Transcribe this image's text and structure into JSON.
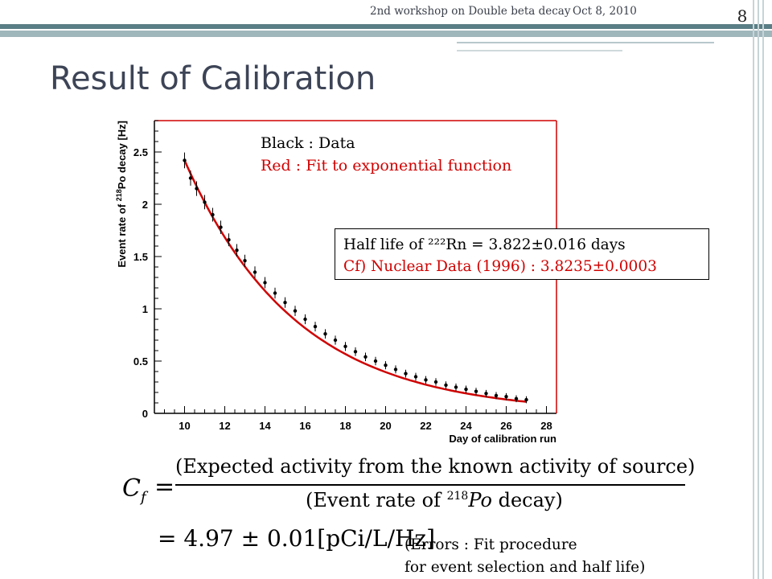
{
  "header": {
    "event": "2nd workshop on Double beta decay",
    "date": "Oct 8, 2010",
    "page": "8"
  },
  "slide": {
    "title": "Result of Calibration"
  },
  "legend": {
    "black": "Black : Data",
    "red": "Red : Fit to exponential function"
  },
  "infobox": {
    "line1": "Half life of ²²²Rn = 3.822±0.016 days",
    "line2": "Cf) Nuclear Data (1996) : 3.8235±0.0003"
  },
  "formula": {
    "lhs": "C",
    "lhs_sub": "f",
    "equals": "=",
    "numerator": "(Expected activity from the known activity of source)",
    "denominator_prefix": "(Event rate of ",
    "denominator_iso": "218",
    "denominator_el": "Po",
    "denominator_suffix": " decay)",
    "result": "= 4.97 ± 0.01[pCi/L/Hz]"
  },
  "errors_note": {
    "line1": "(Errors : Fit procedure",
    "line2": "for event selection and half life)"
  },
  "chart_data": {
    "type": "scatter",
    "xlabel": "Day of calibration run",
    "ylabel_pre": "Event rate of ",
    "ylabel_sup": "218",
    "ylabel_post": "Po decay [Hz]",
    "xlim": [
      8.5,
      28.5
    ],
    "ylim": [
      0,
      2.8
    ],
    "xticks": [
      10,
      12,
      14,
      16,
      18,
      20,
      22,
      24,
      26,
      28
    ],
    "yticks": [
      0,
      0.5,
      1,
      1.5,
      2,
      2.5
    ],
    "ytick_labels": [
      "0",
      "0.5",
      "1",
      "1.5",
      "2",
      "2.5"
    ],
    "series": [
      {
        "kind": "data",
        "color": "#000000",
        "x": [
          10.0,
          10.3,
          10.6,
          11.0,
          11.4,
          11.8,
          12.2,
          12.6,
          13.0,
          13.5,
          14.0,
          14.5,
          15.0,
          15.5,
          16.0,
          16.5,
          17.0,
          17.5,
          18.0,
          18.5,
          19.0,
          19.5,
          20.0,
          20.5,
          21.0,
          21.5,
          22.0,
          22.5,
          23.0,
          23.5,
          24.0,
          24.5,
          25.0,
          25.5,
          26.0,
          26.5,
          27.0
        ],
        "y": [
          2.42,
          2.25,
          2.15,
          2.02,
          1.9,
          1.78,
          1.66,
          1.56,
          1.46,
          1.35,
          1.25,
          1.15,
          1.06,
          0.98,
          0.9,
          0.83,
          0.76,
          0.7,
          0.64,
          0.59,
          0.54,
          0.5,
          0.46,
          0.42,
          0.38,
          0.35,
          0.32,
          0.3,
          0.27,
          0.25,
          0.23,
          0.21,
          0.19,
          0.17,
          0.16,
          0.14,
          0.13
        ]
      },
      {
        "kind": "fit",
        "color": "#d00000",
        "x0": 10.0,
        "x1": 27.0,
        "y0": 2.42,
        "half_life_days": 3.822
      }
    ]
  }
}
